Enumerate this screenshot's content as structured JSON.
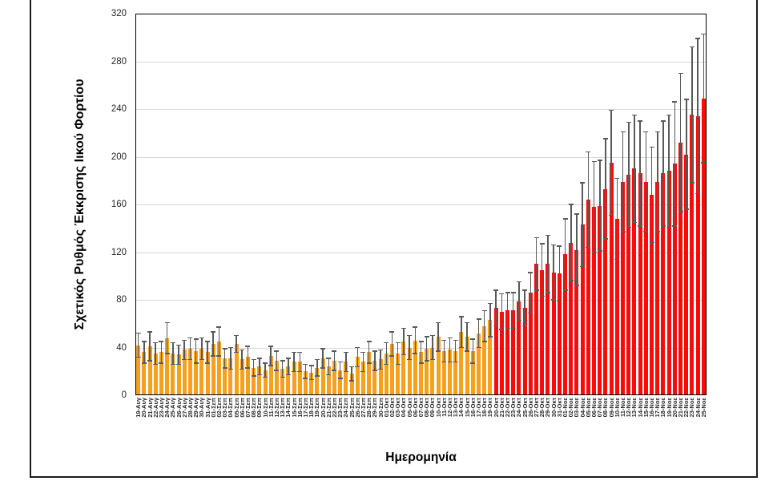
{
  "chart_data": {
    "type": "bar",
    "title": "",
    "xlabel": "Ημερομηνία",
    "ylabel": "Σχετικός Ρυθμός Έκκρισης Ιικού Φορτίου",
    "ylim": [
      0,
      320
    ],
    "yticks": [
      0,
      40,
      80,
      120,
      160,
      200,
      240,
      280,
      320
    ],
    "grid": true,
    "legend": "none",
    "red_from_index": 62,
    "colors": {
      "orange_bar": "#F7A01C",
      "red_bar": "#FB0A0A",
      "error_bar": "#595959",
      "gridline": "#D9D9D9",
      "axis": "#000000"
    },
    "categories": [
      "19-Αυγ",
      "20-Αυγ",
      "21-Αυγ",
      "22-Αυγ",
      "23-Αυγ",
      "24-Αυγ",
      "25-Αυγ",
      "26-Αυγ",
      "27-Αυγ",
      "28-Αυγ",
      "29-Αυγ",
      "30-Αυγ",
      "31-Αυγ",
      "01-Σεπ",
      "02-Σεπ",
      "03-Σεπ",
      "04-Σεπ",
      "05-Σεπ",
      "06-Σεπ",
      "07-Σεπ",
      "08-Σεπ",
      "09-Σεπ",
      "10-Σεπ",
      "11-Σεπ",
      "12-Σεπ",
      "13-Σεπ",
      "14-Σεπ",
      "15-Σεπ",
      "16-Σεπ",
      "17-Σεπ",
      "18-Σεπ",
      "19-Σεπ",
      "20-Σεπ",
      "21-Σεπ",
      "22-Σεπ",
      "23-Σεπ",
      "24-Σεπ",
      "25-Σεπ",
      "26-Σεπ",
      "27-Σεπ",
      "28-Σεπ",
      "29-Σεπ",
      "30-Σεπ",
      "01-Οκτ",
      "02-Οκτ",
      "03-Οκτ",
      "04-Οκτ",
      "05-Οκτ",
      "06-Οκτ",
      "07-Οκτ",
      "08-Οκτ",
      "09-Οκτ",
      "10-Οκτ",
      "11-Οκτ",
      "12-Οκτ",
      "13-Οκτ",
      "14-Οκτ",
      "15-Οκτ",
      "16-Οκτ",
      "17-Οκτ",
      "18-Οκτ",
      "19-Οκτ",
      "20-Οκτ",
      "21-Οκτ",
      "22-Οκτ",
      "23-Οκτ",
      "24-Οκτ",
      "25-Οκτ",
      "26-Οκτ",
      "27-Οκτ",
      "28-Οκτ",
      "29-Οκτ",
      "30-Οκτ",
      "31-Οκτ",
      "01-Νοε",
      "02-Νοε",
      "03-Νοε",
      "04-Νοε",
      "05-Νοε",
      "06-Νοε",
      "07-Νοε",
      "08-Νοε",
      "09-Νοε",
      "10-Νοε",
      "11-Νοε",
      "12-Νοε",
      "13-Νοε",
      "14-Νοε",
      "15-Νοε",
      "16-Νοε",
      "17-Νοε",
      "18-Νοε",
      "19-Νοε",
      "20-Νοε",
      "21-Νοε",
      "22-Νοε",
      "23-Νοε",
      "24-Νοε",
      "25-Νοε"
    ],
    "values": [
      42,
      36,
      41,
      35,
      36,
      48,
      35,
      34,
      38,
      39,
      37,
      39,
      36,
      43,
      45,
      31,
      31,
      43,
      30,
      32,
      23,
      24,
      21,
      33,
      29,
      22,
      24,
      28,
      28,
      20,
      19,
      23,
      31,
      24,
      29,
      21,
      28,
      18,
      32,
      28,
      36,
      29,
      30,
      35,
      43,
      35,
      45,
      40,
      46,
      36,
      39,
      40,
      49,
      37,
      38,
      37,
      53,
      49,
      37,
      52,
      58,
      63,
      73,
      70,
      71,
      71,
      79,
      73,
      86,
      110,
      105,
      110,
      103,
      102,
      118,
      128,
      122,
      143,
      164,
      158,
      159,
      173,
      195,
      148,
      179,
      185,
      190,
      186,
      179,
      168,
      179,
      186,
      188,
      194,
      212,
      202,
      235,
      234,
      249
    ],
    "errors": [
      10,
      9,
      12,
      9,
      9,
      13,
      9,
      8,
      8,
      9,
      10,
      9,
      9,
      10,
      12,
      8,
      9,
      7,
      8,
      9,
      7,
      7,
      6,
      8,
      8,
      7,
      7,
      8,
      8,
      6,
      6,
      7,
      8,
      7,
      8,
      7,
      8,
      6,
      8,
      8,
      9,
      8,
      8,
      9,
      10,
      9,
      11,
      10,
      11,
      9,
      10,
      10,
      12,
      9,
      10,
      9,
      13,
      12,
      10,
      12,
      13,
      14,
      15,
      15,
      15,
      15,
      16,
      15,
      17,
      22,
      22,
      24,
      23,
      23,
      30,
      32,
      30,
      35,
      40,
      38,
      38,
      42,
      44,
      34,
      42,
      44,
      45,
      44,
      42,
      40,
      42,
      44,
      47,
      52,
      58,
      46,
      57,
      65,
      54
    ]
  }
}
